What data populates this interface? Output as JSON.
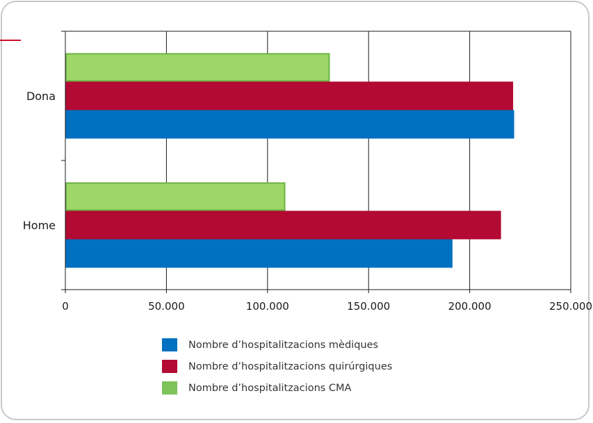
{
  "chart_data": {
    "type": "bar",
    "orientation": "horizontal",
    "categories": [
      "Dona",
      "Home"
    ],
    "series": [
      {
        "name": "Nombre d’hospitalitzacions mèdiques",
        "color": "#0070c0",
        "values": [
          222000,
          191500
        ]
      },
      {
        "name": "Nombre d’hospitalitzacions quirúrgiques",
        "color": "#b20a33",
        "values": [
          221500,
          215500
        ]
      },
      {
        "name": "Nombre d’hospitalitzacions CMA",
        "color": "#9ed66a",
        "border": "#6bb443",
        "values": [
          130500,
          108500
        ]
      }
    ],
    "xlim": [
      0,
      250000
    ],
    "xticks": [
      0,
      50000,
      100000,
      150000,
      200000,
      250000
    ],
    "xtick_labels": [
      "0",
      "50.000",
      "100.000",
      "150.000",
      "200.000",
      "250.000"
    ],
    "grid": true,
    "legend_position": "bottom",
    "title": "",
    "xlabel": "",
    "ylabel": ""
  },
  "legend_colors": [
    "#0070c0",
    "#b20a33",
    "#7ec25a"
  ]
}
